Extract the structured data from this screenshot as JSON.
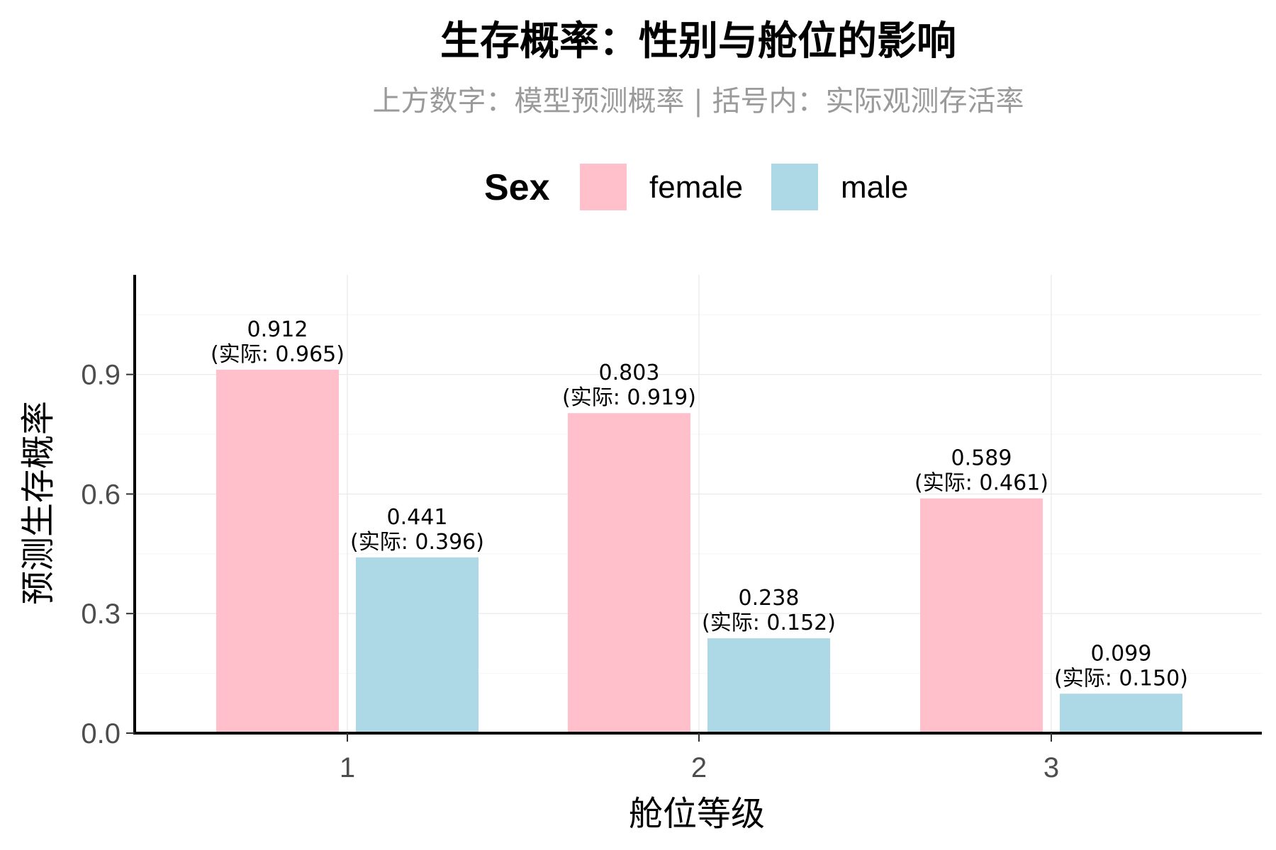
{
  "chart_data": {
    "type": "bar",
    "title": "生存概率：性别与舱位的影响",
    "subtitle": "上方数字：模型预测概率 | 括号内：实际观测存活率",
    "xlabel": "舱位等级",
    "ylabel": "预测生存概率",
    "categories": [
      "1",
      "2",
      "3"
    ],
    "ylim": [
      0,
      1.15
    ],
    "yticks": [
      0.0,
      0.3,
      0.6,
      0.9
    ],
    "ytick_labels": [
      "0.0",
      "0.3",
      "0.6",
      "0.9"
    ],
    "grid": true,
    "legend": {
      "title": "Sex",
      "position": "top"
    },
    "series": [
      {
        "name": "female",
        "color": "#FFC0CB",
        "values": [
          0.912,
          0.803,
          0.589
        ],
        "labels": [
          "0.912",
          "0.803",
          "0.589"
        ],
        "actual_labels": [
          "(实际: 0.965)",
          "(实际: 0.919)",
          "(实际: 0.461)"
        ]
      },
      {
        "name": "male",
        "color": "#ADD8E6",
        "values": [
          0.441,
          0.238,
          0.099
        ],
        "labels": [
          "0.441",
          "0.238",
          "0.099"
        ],
        "actual_labels": [
          "(实际: 0.396)",
          "(实际: 0.152)",
          "(实际: 0.150)"
        ]
      }
    ]
  }
}
